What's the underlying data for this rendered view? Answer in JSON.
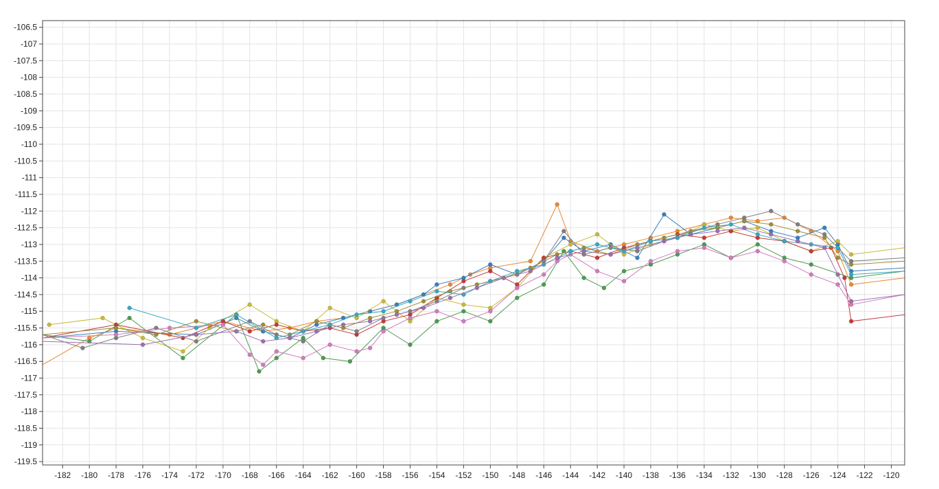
{
  "chart_data": {
    "type": "line",
    "title": "",
    "xlabel": "",
    "ylabel": "",
    "xlim": [
      -183.5,
      -119
    ],
    "ylim": [
      -119.6,
      -106.3
    ],
    "x_ticks": [
      -182,
      -180,
      -178,
      -176,
      -174,
      -172,
      -170,
      -168,
      -166,
      -164,
      -162,
      -160,
      -158,
      -156,
      -154,
      -152,
      -150,
      -148,
      -146,
      -144,
      -142,
      -140,
      -138,
      -136,
      -134,
      -132,
      -130,
      -128,
      -126,
      -124,
      -122,
      -120
    ],
    "y_ticks": [
      -106.5,
      -107,
      -107.5,
      -108,
      -108.5,
      -109,
      -109.5,
      -110,
      -110.5,
      -111,
      -111.5,
      -112,
      -112.5,
      -113,
      -113.5,
      -114,
      -114.5,
      -115,
      -115.5,
      -116,
      -116.5,
      -117,
      -117.5,
      -118,
      -118.5,
      -119,
      -119.5
    ],
    "x_tick_labels": [
      "-182",
      "-180",
      "-178",
      "-176",
      "-174",
      "-172",
      "-170",
      "-168",
      "-166",
      "-164",
      "-162",
      "-160",
      "-158",
      "-156",
      "-154",
      "-152",
      "-150",
      "-148",
      "-146",
      "-144",
      "-142",
      "-140",
      "-138",
      "-136",
      "-134",
      "-132",
      "-130",
      "-128",
      "-126",
      "-124",
      "-122",
      "-120"
    ],
    "y_tick_labels": [
      "-106.5",
      "-107",
      "-107.5",
      "-108",
      "-108.5",
      "-109",
      "-109.5",
      "-110",
      "-110.5",
      "-111",
      "-111.5",
      "-112",
      "-112.5",
      "-113",
      "-113.5",
      "-114",
      "-114.5",
      "-115",
      "-115.5",
      "-116",
      "-116.5",
      "-117",
      "-117.5",
      "-118",
      "-118.5",
      "-119",
      "-119.5"
    ],
    "grid": true,
    "legend": "none",
    "marker_style": "circle",
    "series": [
      {
        "color": "#e8892f",
        "x": [
          -183.5,
          -180,
          -178,
          -174,
          -170,
          -167,
          -165,
          -163,
          -161,
          -159,
          -157,
          -155,
          -153,
          -151.5,
          -150,
          -147,
          -145,
          -144,
          -142,
          -140,
          -138,
          -136,
          -134,
          -132,
          -130,
          -128,
          -126,
          -124,
          -123,
          -119
        ],
        "y": [
          -116.6,
          -115.8,
          -115.5,
          -115.7,
          -115.3,
          -115.6,
          -115.5,
          -115.3,
          -115.2,
          -115.0,
          -114.8,
          -114.5,
          -114.2,
          -113.9,
          -113.7,
          -113.5,
          -111.8,
          -112.9,
          -113.2,
          -113.0,
          -112.8,
          -112.6,
          -112.4,
          -112.2,
          -112.3,
          -112.2,
          -112.6,
          -113.2,
          -114.2,
          -114.0
        ]
      },
      {
        "color": "#3a7fbf",
        "x": [
          -183.5,
          -178,
          -172,
          -169,
          -167,
          -165,
          -163,
          -161,
          -159,
          -157,
          -155,
          -154,
          -152,
          -150,
          -148,
          -146,
          -144.5,
          -143,
          -141,
          -139,
          -137,
          -135,
          -133,
          -131,
          -129,
          -127,
          -125,
          -124,
          -123,
          -119
        ],
        "y": [
          -115.8,
          -115.6,
          -115.7,
          -115.2,
          -115.6,
          -115.8,
          -115.4,
          -115.2,
          -115.0,
          -114.8,
          -114.5,
          -114.2,
          -114.0,
          -113.6,
          -113.9,
          -113.5,
          -112.8,
          -113.2,
          -113.0,
          -113.4,
          -112.1,
          -112.7,
          -112.5,
          -112.3,
          -112.6,
          -112.8,
          -112.5,
          -113.0,
          -113.8,
          -113.7
        ]
      },
      {
        "color": "#c8b836",
        "x": [
          -183,
          -179,
          -176,
          -173,
          -171,
          -168,
          -166,
          -164,
          -162,
          -160,
          -158,
          -156,
          -154,
          -152,
          -150,
          -148,
          -146,
          -144,
          -142,
          -140,
          -138,
          -136,
          -134,
          -132,
          -130,
          -128,
          -126,
          -124,
          -123,
          -119
        ],
        "y": [
          -115.4,
          -115.2,
          -115.8,
          -116.2,
          -115.5,
          -114.8,
          -115.3,
          -115.6,
          -114.9,
          -115.2,
          -114.7,
          -115.3,
          -114.6,
          -114.8,
          -114.9,
          -114.3,
          -113.4,
          -113.0,
          -112.7,
          -113.3,
          -113.0,
          -112.8,
          -112.4,
          -112.6,
          -112.5,
          -112.9,
          -113.2,
          -112.9,
          -113.3,
          -113.1
        ]
      },
      {
        "color": "#4e9a51",
        "x": [
          -183.5,
          -180,
          -177,
          -173,
          -169,
          -167.3,
          -166,
          -164,
          -162.5,
          -160.5,
          -158,
          -156,
          -154,
          -152,
          -150,
          -148,
          -146,
          -144.5,
          -143,
          -141.5,
          -140,
          -138,
          -136,
          -134,
          -132,
          -130,
          -128,
          -126,
          -123,
          -119
        ],
        "y": [
          -115.7,
          -115.9,
          -115.2,
          -116.4,
          -115.1,
          -116.8,
          -116.4,
          -115.8,
          -116.4,
          -116.5,
          -115.5,
          -116.0,
          -115.3,
          -115.0,
          -115.3,
          -114.6,
          -114.2,
          -113.2,
          -114.0,
          -114.3,
          -113.8,
          -113.6,
          -113.3,
          -113.0,
          -113.4,
          -113.0,
          -113.4,
          -113.6,
          -114.0,
          -113.8
        ]
      },
      {
        "color": "#c23b3b",
        "x": [
          -183.5,
          -178,
          -173,
          -170,
          -168,
          -166,
          -164,
          -162,
          -160,
          -158,
          -156,
          -154,
          -152,
          -150,
          -148,
          -146,
          -144,
          -142,
          -140,
          -138,
          -136,
          -134,
          -132,
          -130,
          -128,
          -126,
          -124.5,
          -123.5,
          -123,
          -119
        ],
        "y": [
          -115.8,
          -115.4,
          -115.8,
          -115.3,
          -115.6,
          -115.4,
          -115.6,
          -115.5,
          -115.7,
          -115.3,
          -115.1,
          -114.6,
          -114.1,
          -113.8,
          -114.2,
          -113.4,
          -113.2,
          -113.4,
          -113.1,
          -112.9,
          -112.7,
          -112.8,
          -112.6,
          -112.8,
          -112.9,
          -113.2,
          -113.1,
          -114.0,
          -115.3,
          -115.1
        ]
      },
      {
        "color": "#7f7f7f",
        "x": [
          -183.5,
          -180.5,
          -178,
          -175,
          -172,
          -168,
          -166,
          -164,
          -162,
          -160,
          -158,
          -156,
          -154,
          -152,
          -150,
          -148,
          -146,
          -144.5,
          -143,
          -141,
          -139,
          -137,
          -135,
          -133,
          -131,
          -129,
          -127,
          -125,
          -123,
          -119
        ],
        "y": [
          -115.7,
          -116.1,
          -115.8,
          -115.5,
          -115.9,
          -115.3,
          -115.7,
          -115.9,
          -115.4,
          -115.6,
          -115.2,
          -115.0,
          -114.7,
          -114.3,
          -114.1,
          -113.9,
          -113.5,
          -112.6,
          -113.3,
          -113.1,
          -113.2,
          -112.9,
          -112.6,
          -112.4,
          -112.2,
          -112.0,
          -112.4,
          -112.7,
          -113.5,
          -113.4
        ]
      },
      {
        "color": "#cf7bbf",
        "x": [
          -183.5,
          -178,
          -174,
          -170,
          -168,
          -167,
          -166,
          -164,
          -162,
          -160,
          -159,
          -158,
          -156,
          -154,
          -152,
          -150,
          -148,
          -146,
          -145,
          -144,
          -142,
          -140,
          -138,
          -136,
          -134,
          -132,
          -130,
          -128,
          -126,
          -124,
          -123,
          -119
        ],
        "y": [
          -115.8,
          -115.7,
          -115.5,
          -115.4,
          -116.3,
          -116.6,
          -116.2,
          -116.4,
          -116.0,
          -116.2,
          -116.1,
          -115.6,
          -115.2,
          -115.0,
          -115.3,
          -115.0,
          -114.3,
          -113.9,
          -113.5,
          -113.3,
          -113.8,
          -114.1,
          -113.5,
          -113.2,
          -113.1,
          -113.4,
          -113.2,
          -113.5,
          -113.9,
          -114.2,
          -114.8,
          -114.5
        ]
      },
      {
        "color": "#a08c3a",
        "x": [
          -183.5,
          -178,
          -175,
          -172,
          -169,
          -167,
          -165,
          -163,
          -161,
          -159,
          -157,
          -155,
          -153,
          -151,
          -149,
          -147,
          -145,
          -143,
          -141,
          -139,
          -137,
          -135,
          -133,
          -131,
          -129,
          -127,
          -125,
          -124,
          -123,
          -119
        ],
        "y": [
          -115.7,
          -115.5,
          -115.7,
          -115.3,
          -115.6,
          -115.4,
          -115.7,
          -115.3,
          -115.5,
          -115.2,
          -115.0,
          -114.7,
          -114.4,
          -114.2,
          -114.0,
          -113.7,
          -113.3,
          -113.1,
          -113.3,
          -113.0,
          -112.8,
          -112.6,
          -112.5,
          -112.3,
          -112.4,
          -112.6,
          -112.8,
          -113.4,
          -113.6,
          -113.5
        ]
      },
      {
        "color": "#37a8c0",
        "x": [
          -177,
          -172,
          -169,
          -166,
          -164,
          -162,
          -160,
          -158,
          -156,
          -154,
          -152,
          -150,
          -148,
          -146,
          -144,
          -142,
          -140,
          -138,
          -136,
          -134,
          -132,
          -130,
          -128,
          -126,
          -124,
          -123,
          -119
        ],
        "y": [
          -114.9,
          -115.5,
          -115.1,
          -115.8,
          -115.6,
          -115.4,
          -115.1,
          -115.0,
          -114.7,
          -114.4,
          -114.5,
          -114.1,
          -113.8,
          -113.6,
          -113.2,
          -113.0,
          -113.2,
          -112.9,
          -112.8,
          -112.5,
          -112.4,
          -112.7,
          -112.9,
          -113.0,
          -113.1,
          -113.9,
          -113.8
        ]
      },
      {
        "color": "#9b6fb0",
        "x": [
          -183.5,
          -176,
          -172,
          -169,
          -167,
          -165,
          -163,
          -161,
          -159,
          -157,
          -155,
          -153,
          -151,
          -149,
          -147,
          -145,
          -143,
          -141,
          -139,
          -137,
          -135,
          -133,
          -131,
          -129,
          -127,
          -125,
          -124,
          -123,
          -119
        ],
        "y": [
          -115.9,
          -116.0,
          -115.7,
          -115.6,
          -115.9,
          -115.8,
          -115.6,
          -115.4,
          -115.3,
          -115.1,
          -114.9,
          -114.6,
          -114.3,
          -114.0,
          -113.8,
          -113.4,
          -113.2,
          -113.3,
          -113.1,
          -112.9,
          -112.7,
          -112.6,
          -112.5,
          -112.7,
          -112.9,
          -113.1,
          -113.9,
          -114.7,
          -114.5
        ]
      }
    ]
  }
}
